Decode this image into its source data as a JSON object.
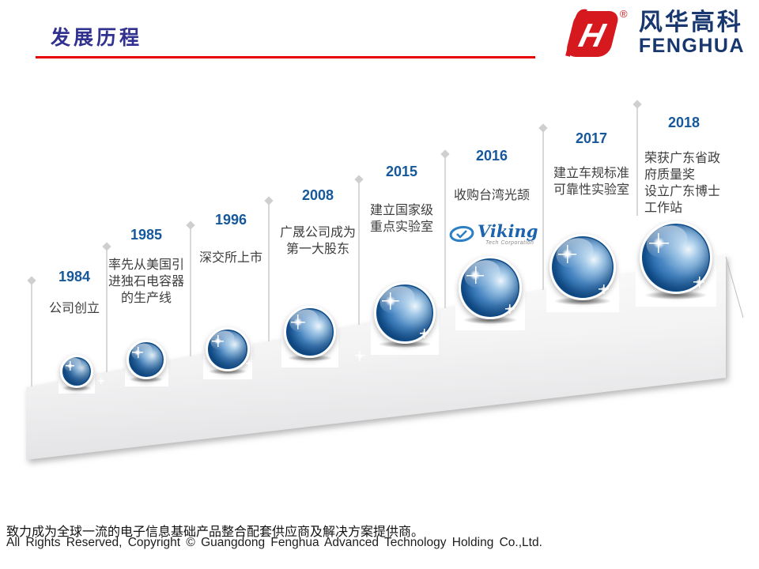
{
  "header": {
    "title": "发展历程",
    "logo": {
      "mark_letter": "H",
      "registered": "®",
      "brand_cn": "风华高科",
      "brand_en": "FENGHUA"
    }
  },
  "colors": {
    "accent_red": "#e80000",
    "title_blue": "#31318f",
    "year_blue": "#15589c",
    "ball_blue": "#1b64ab",
    "logo_red": "#d6181f",
    "logo_navy": "#17376e",
    "desc_gray": "#3d3d3d"
  },
  "timeline": {
    "milestones": [
      {
        "year": "1984",
        "desc": "公司创立"
      },
      {
        "year": "1985",
        "desc": "率先从美国引进独石电容器的生产线"
      },
      {
        "year": "1996",
        "desc": "深交所上市"
      },
      {
        "year": "2008",
        "desc": "广晟公司成为第一大股东"
      },
      {
        "year": "2015",
        "desc": "建立国家级重点实验室"
      },
      {
        "year": "2016",
        "desc": "收购台湾光颉",
        "partner_logo": {
          "name": "Viking",
          "sub": "Tech Corporation"
        }
      },
      {
        "year": "2017",
        "desc": "建立车规标准可靠性实验室"
      },
      {
        "year": "2018",
        "desc": "荣获广东省政府质量奖\n设立广东博士工作站"
      }
    ]
  },
  "footer": {
    "line1": "致力成为全球一流的电子信息基础产品整合配套供应商及解决方案提供商。",
    "line2": "All Rights Reserved, Copyright © Guangdong Fenghua Advanced Technology Holding Co.,Ltd."
  }
}
